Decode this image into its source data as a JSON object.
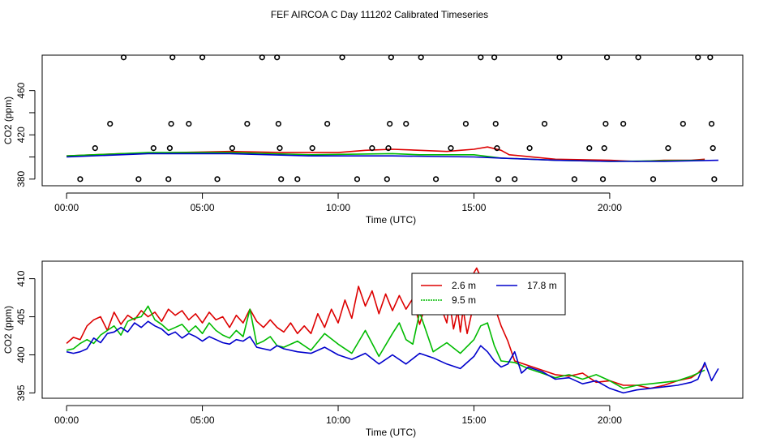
{
  "title": "FEF AIRCOA C  Day 111202  Calibrated Timeseries",
  "chart_data": [
    {
      "type": "scatter+line",
      "xlabel": "Time (UTC)",
      "ylabel": "CO2 (ppm)",
      "xlim": [
        -0.9,
        24.9
      ],
      "ylim": [
        374,
        492
      ],
      "x_ticks": [
        0,
        5,
        10,
        15,
        20
      ],
      "x_tick_labels": [
        "00:00",
        "05:00",
        "10:00",
        "15:00",
        "20:00"
      ],
      "y_ticks": [
        380,
        420,
        460
      ],
      "y_tick_labels": [
        "380",
        "420",
        "460"
      ],
      "y_minor_ticks": [
        400,
        440
      ],
      "calibration_points": [
        {
          "x": 0.5,
          "y": 380
        },
        {
          "x": 1.05,
          "y": 408
        },
        {
          "x": 1.6,
          "y": 430
        },
        {
          "x": 2.1,
          "y": 490
        },
        {
          "x": 2.65,
          "y": 380
        },
        {
          "x": 3.2,
          "y": 408
        },
        {
          "x": 3.75,
          "y": 380
        },
        {
          "x": 3.8,
          "y": 408
        },
        {
          "x": 3.85,
          "y": 430
        },
        {
          "x": 3.9,
          "y": 490
        },
        {
          "x": 4.5,
          "y": 430
        },
        {
          "x": 5.0,
          "y": 490
        },
        {
          "x": 5.55,
          "y": 380
        },
        {
          "x": 6.1,
          "y": 408
        },
        {
          "x": 6.65,
          "y": 430
        },
        {
          "x": 7.2,
          "y": 490
        },
        {
          "x": 7.75,
          "y": 490
        },
        {
          "x": 7.8,
          "y": 430
        },
        {
          "x": 7.85,
          "y": 408
        },
        {
          "x": 7.9,
          "y": 380
        },
        {
          "x": 8.5,
          "y": 380
        },
        {
          "x": 9.05,
          "y": 408
        },
        {
          "x": 9.6,
          "y": 430
        },
        {
          "x": 10.15,
          "y": 490
        },
        {
          "x": 10.7,
          "y": 380
        },
        {
          "x": 11.25,
          "y": 408
        },
        {
          "x": 11.8,
          "y": 380
        },
        {
          "x": 11.85,
          "y": 408
        },
        {
          "x": 11.9,
          "y": 430
        },
        {
          "x": 11.95,
          "y": 490
        },
        {
          "x": 12.5,
          "y": 430
        },
        {
          "x": 13.05,
          "y": 490
        },
        {
          "x": 13.6,
          "y": 380
        },
        {
          "x": 14.15,
          "y": 408
        },
        {
          "x": 14.7,
          "y": 430
        },
        {
          "x": 15.25,
          "y": 490
        },
        {
          "x": 15.75,
          "y": 490
        },
        {
          "x": 15.8,
          "y": 430
        },
        {
          "x": 15.85,
          "y": 408
        },
        {
          "x": 15.9,
          "y": 380
        },
        {
          "x": 16.5,
          "y": 380
        },
        {
          "x": 17.05,
          "y": 408
        },
        {
          "x": 17.6,
          "y": 430
        },
        {
          "x": 18.15,
          "y": 490
        },
        {
          "x": 18.7,
          "y": 380
        },
        {
          "x": 19.25,
          "y": 408
        },
        {
          "x": 19.75,
          "y": 380
        },
        {
          "x": 19.8,
          "y": 408
        },
        {
          "x": 19.85,
          "y": 430
        },
        {
          "x": 19.9,
          "y": 490
        },
        {
          "x": 20.5,
          "y": 430
        },
        {
          "x": 21.05,
          "y": 490
        },
        {
          "x": 21.6,
          "y": 380
        },
        {
          "x": 22.15,
          "y": 408
        },
        {
          "x": 22.7,
          "y": 430
        },
        {
          "x": 23.25,
          "y": 490
        },
        {
          "x": 23.7,
          "y": 490
        },
        {
          "x": 23.75,
          "y": 430
        },
        {
          "x": 23.8,
          "y": 408
        },
        {
          "x": 23.85,
          "y": 380
        }
      ],
      "series": [
        {
          "name": "2.6 m",
          "color": "#dd0000",
          "x": [
            0,
            2,
            4,
            6,
            8,
            10,
            11,
            12,
            13,
            14,
            14.5,
            15,
            15.5,
            16,
            16.3,
            18,
            20,
            21,
            22,
            23,
            23.5
          ],
          "y": [
            401,
            403,
            404,
            405,
            404,
            404,
            406,
            407,
            406,
            405,
            406,
            407,
            409,
            406,
            402,
            398,
            397,
            396,
            397,
            397,
            398
          ]
        },
        {
          "name": "9.5 m",
          "color": "#00bb00",
          "x": [
            0,
            3,
            6,
            9,
            12,
            13,
            15,
            16,
            18,
            20,
            23.5
          ],
          "y": [
            401,
            404,
            404,
            402,
            403,
            402,
            402,
            399,
            397,
            396,
            397
          ]
        },
        {
          "name": "17.8 m",
          "color": "#0000cc",
          "x": [
            0,
            3,
            6,
            9,
            12,
            15,
            16,
            18,
            20,
            22,
            24
          ],
          "y": [
            400,
            403,
            403,
            401,
            401,
            400,
            399,
            397,
            396,
            396,
            397
          ]
        }
      ]
    },
    {
      "type": "line",
      "xlabel": "Time (UTC)",
      "ylabel": "CO2 (ppm)",
      "xlim": [
        -0.9,
        24.9
      ],
      "ylim": [
        394.3,
        412.3
      ],
      "x_ticks": [
        0,
        5,
        10,
        15,
        20
      ],
      "x_tick_labels": [
        "00:00",
        "05:00",
        "10:00",
        "15:00",
        "20:00"
      ],
      "y_ticks": [
        395,
        400,
        405,
        410
      ],
      "y_tick_labels": [
        "395",
        "400",
        "405",
        "410"
      ],
      "legend": {
        "position": "top-center",
        "entries": [
          "2.6 m",
          "17.8 m",
          "9.5 m"
        ]
      },
      "series": [
        {
          "name": "2.6 m",
          "color": "#dd0000",
          "x": [
            0,
            0.25,
            0.5,
            0.75,
            1,
            1.25,
            1.5,
            1.75,
            2,
            2.25,
            2.5,
            2.75,
            3,
            3.25,
            3.5,
            3.75,
            4,
            4.25,
            4.5,
            4.75,
            5,
            5.25,
            5.5,
            5.75,
            6,
            6.25,
            6.5,
            6.75,
            7,
            7.25,
            7.5,
            7.75,
            8,
            8.25,
            8.5,
            8.75,
            9,
            9.25,
            9.5,
            9.75,
            10,
            10.25,
            10.5,
            10.75,
            11,
            11.25,
            11.5,
            11.75,
            12,
            12.25,
            12.5,
            12.75,
            13,
            13.25,
            13.5,
            13.75,
            14,
            14.1,
            14.25,
            14.4,
            14.5,
            14.6,
            14.75,
            14.9,
            15,
            15.1,
            15.25,
            15.4,
            15.5,
            15.75,
            16,
            16.25,
            16.5,
            17,
            17.5,
            18,
            18.5,
            19,
            19.5,
            20,
            20.5,
            21,
            21.5,
            22,
            22.5,
            23,
            23.25,
            23.5
          ],
          "y": [
            401.5,
            402.3,
            402.0,
            403.8,
            404.6,
            405.0,
            403.2,
            405.6,
            404.0,
            405.2,
            404.6,
            405.8,
            405.0,
            405.6,
            404.4,
            406.0,
            405.2,
            405.8,
            404.6,
            405.4,
            404.2,
            405.6,
            404.6,
            405.0,
            403.6,
            405.2,
            404.2,
            406.0,
            404.4,
            403.6,
            404.6,
            403.6,
            403.0,
            404.2,
            402.8,
            403.8,
            402.8,
            405.4,
            403.6,
            406.0,
            404.2,
            407.2,
            404.8,
            409.0,
            406.4,
            408.4,
            405.4,
            408.0,
            405.8,
            407.8,
            406.0,
            407.4,
            404.0,
            407.0,
            405.4,
            406.6,
            404.2,
            407.0,
            403.4,
            405.8,
            403.0,
            406.0,
            402.8,
            405.2,
            410.8,
            411.4,
            410.2,
            406.8,
            409.2,
            406.4,
            403.8,
            401.8,
            399.2,
            398.6,
            398.0,
            397.4,
            397.2,
            397.6,
            396.4,
            396.6,
            396.0,
            396.0,
            395.6,
            396.0,
            396.6,
            397.0,
            397.6,
            398.6
          ]
        },
        {
          "name": "9.5 m",
          "color": "#00bb00",
          "x": [
            0,
            0.25,
            0.5,
            0.75,
            1,
            1.25,
            1.5,
            1.75,
            2,
            2.25,
            2.5,
            2.75,
            3,
            3.25,
            3.5,
            3.75,
            4,
            4.25,
            4.5,
            4.75,
            5,
            5.25,
            5.5,
            5.75,
            6,
            6.25,
            6.5,
            6.75,
            7,
            7.25,
            7.5,
            7.75,
            8,
            8.5,
            9,
            9.5,
            10,
            10.5,
            11,
            11.5,
            12,
            12.25,
            12.5,
            12.75,
            13,
            13.5,
            14,
            14.5,
            15,
            15.25,
            15.5,
            15.75,
            16,
            16.5,
            17,
            17.5,
            18,
            18.5,
            19,
            19.5,
            20,
            20.5,
            21,
            21.5,
            22,
            22.5,
            23,
            23.5
          ],
          "y": [
            400.6,
            400.8,
            401.5,
            402.0,
            401.5,
            402.6,
            403.2,
            403.8,
            402.6,
            404.4,
            404.8,
            405.0,
            406.4,
            404.6,
            404.0,
            403.2,
            403.6,
            404.0,
            403.0,
            403.8,
            402.8,
            404.2,
            403.2,
            402.6,
            402.2,
            403.2,
            402.4,
            406.0,
            401.4,
            401.8,
            402.4,
            401.2,
            401.0,
            401.8,
            400.6,
            402.8,
            401.4,
            400.2,
            403.2,
            399.8,
            402.8,
            404.2,
            402.0,
            401.4,
            405.6,
            400.4,
            401.6,
            400.2,
            402.0,
            403.8,
            404.2,
            401.2,
            399.2,
            399.0,
            398.2,
            397.6,
            397.0,
            397.4,
            396.8,
            397.4,
            396.6,
            395.6,
            396.0,
            396.2,
            396.4,
            396.6,
            397.2,
            398.0
          ]
        },
        {
          "name": "17.8 m",
          "color": "#0000cc",
          "x": [
            0,
            0.25,
            0.5,
            0.75,
            1,
            1.25,
            1.5,
            1.75,
            2,
            2.25,
            2.5,
            2.75,
            3,
            3.25,
            3.5,
            3.75,
            4,
            4.25,
            4.5,
            4.75,
            5,
            5.25,
            5.5,
            5.75,
            6,
            6.25,
            6.5,
            6.75,
            7,
            7.25,
            7.5,
            7.75,
            8,
            8.5,
            9,
            9.5,
            10,
            10.5,
            11,
            11.5,
            12,
            12.5,
            13,
            13.5,
            14,
            14.5,
            15,
            15.25,
            15.5,
            15.75,
            16,
            16.25,
            16.5,
            16.75,
            17,
            17.5,
            18,
            18.5,
            19,
            19.5,
            20,
            20.5,
            21,
            21.5,
            22,
            22.5,
            23,
            23.25,
            23.5,
            23.75,
            24
          ],
          "y": [
            400.4,
            400.2,
            400.4,
            400.8,
            402.2,
            401.6,
            402.8,
            403.0,
            403.6,
            403.0,
            404.2,
            403.6,
            404.4,
            403.8,
            403.4,
            402.6,
            403.0,
            402.2,
            402.8,
            402.4,
            401.8,
            402.4,
            402.0,
            401.6,
            401.4,
            402.0,
            401.8,
            402.4,
            401.0,
            400.8,
            400.6,
            401.2,
            400.8,
            400.4,
            400.2,
            401.0,
            400.0,
            399.4,
            400.2,
            398.8,
            400.0,
            398.8,
            400.2,
            399.6,
            398.8,
            398.2,
            399.8,
            401.2,
            400.4,
            399.2,
            398.4,
            398.8,
            400.4,
            397.6,
            398.4,
            397.8,
            396.8,
            397.0,
            396.2,
            396.6,
            395.6,
            395.0,
            395.4,
            395.6,
            395.8,
            396.0,
            396.4,
            396.8,
            399.0,
            396.6,
            398.2
          ]
        }
      ]
    }
  ]
}
